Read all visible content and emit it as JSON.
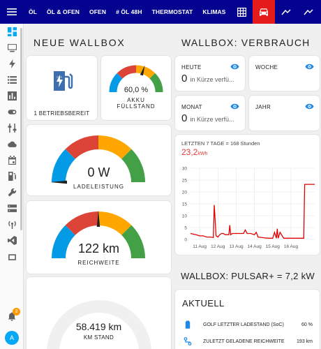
{
  "topbar": {
    "tabs": [
      "ÖL",
      "ÖL & OFEN",
      "OFEN",
      "# ÖL 48H",
      "THERMOSTAT",
      "KLIMAS"
    ],
    "icon_tabs": [
      "grid-icon",
      "car-icon",
      "chart-line-icon",
      "chart-line-icon"
    ],
    "active_color": "#e31b1b",
    "bar_color": "#03038f"
  },
  "sidebar": {
    "icons": [
      "dashboard-icon",
      "monitor-icon",
      "flash-icon",
      "list-icon",
      "bar-chart-icon",
      "toggle-icon",
      "sliders-icon",
      "cloud-icon",
      "calendar-icon",
      "charger-icon",
      "wrench-icon",
      "server-icon",
      "antenna-icon",
      "vscode-icon",
      "tools-icon"
    ],
    "notification_count": "3",
    "avatar_letter": "A"
  },
  "left": {
    "heading": "NEUE WALLBOX",
    "status_label": "1 BETRIEBSBEREIT",
    "akku": {
      "value": "60,0 %",
      "label1": "AKKU",
      "label2": "FÜLLSTAND",
      "level": 60
    },
    "ladeleistung": {
      "value": "0 W",
      "label": "LADELEISTUNG",
      "level": 0
    },
    "reichweite": {
      "value": "122 km",
      "label": "REICHWEITE",
      "level": 50
    },
    "km_stand": {
      "value": "58.419 km",
      "label": "KM STAND"
    }
  },
  "right": {
    "heading": "WALLBOX:  VERBRAUCH",
    "stats": [
      {
        "title": "HEUTE",
        "value": "0",
        "sub": "in Kürze verfü..."
      },
      {
        "title": "WOCHE",
        "value": "",
        "sub": ""
      },
      {
        "title": "MONAT",
        "value": "0",
        "sub": "in Kürze verfü..."
      },
      {
        "title": "JAHR",
        "value": "",
        "sub": ""
      }
    ],
    "chart": {
      "title": "LETZTEN 7 TAGE = 168 Stunden",
      "big_value": "23,2",
      "big_unit": "kWh"
    },
    "pulsar_heading": "WALLBOX: PULSAR+ = 7,2 kW",
    "aktuell": {
      "title": "AKTUELL",
      "rows": [
        {
          "label": "GOLF LETZTER LADESTAND (SoC)",
          "value": "60 %"
        },
        {
          "label": "ZULETZT GELADENE REICHWEITE",
          "value": "193 km"
        }
      ]
    }
  },
  "chart_data": {
    "type": "line",
    "title": "LETZTEN 7 TAGE = 168 Stunden",
    "x_ticks": [
      "11 Aug",
      "12 Aug",
      "13 Aug",
      "14 Aug",
      "15 Aug",
      "16 Aug"
    ],
    "y_ticks": [
      0,
      5,
      10,
      15,
      20,
      25,
      30
    ],
    "ylim": [
      0,
      30
    ],
    "xlim": [
      10.5,
      17.3
    ],
    "grid": true,
    "series": [
      {
        "color": "#e00000",
        "x": [
          10.5,
          10.8,
          11.0,
          11.2,
          11.3,
          11.4,
          11.6,
          11.75,
          11.8,
          11.9,
          12.0,
          12.1,
          12.2,
          12.3,
          12.4,
          12.5,
          12.6,
          12.65,
          12.7,
          12.8,
          13.0,
          13.2,
          13.4,
          13.5,
          13.6,
          13.8,
          14.0,
          14.1,
          14.2,
          14.4,
          14.6,
          14.8,
          15.0,
          15.1,
          15.2,
          15.25,
          15.3,
          15.4,
          15.6,
          15.7,
          15.8,
          16.0,
          16.2,
          16.5,
          16.6,
          16.7,
          16.75,
          16.8,
          17.3
        ],
        "y": [
          2.5,
          2.0,
          1.5,
          1.5,
          1.2,
          1.0,
          1.0,
          0.8,
          14.5,
          1.5,
          1.0,
          2.0,
          2.5,
          2.5,
          2.0,
          2.0,
          2.0,
          6.0,
          2.0,
          2.5,
          2.5,
          2.5,
          2.5,
          4.0,
          2.5,
          2.5,
          2.0,
          3.0,
          1.0,
          0.8,
          0.6,
          0.5,
          0.5,
          3.0,
          0.5,
          4.5,
          0.5,
          3.0,
          0.5,
          0.5,
          0.5,
          0.5,
          0.5,
          0.5,
          0.5,
          0.5,
          23.2,
          23.2,
          23.2
        ]
      }
    ]
  }
}
